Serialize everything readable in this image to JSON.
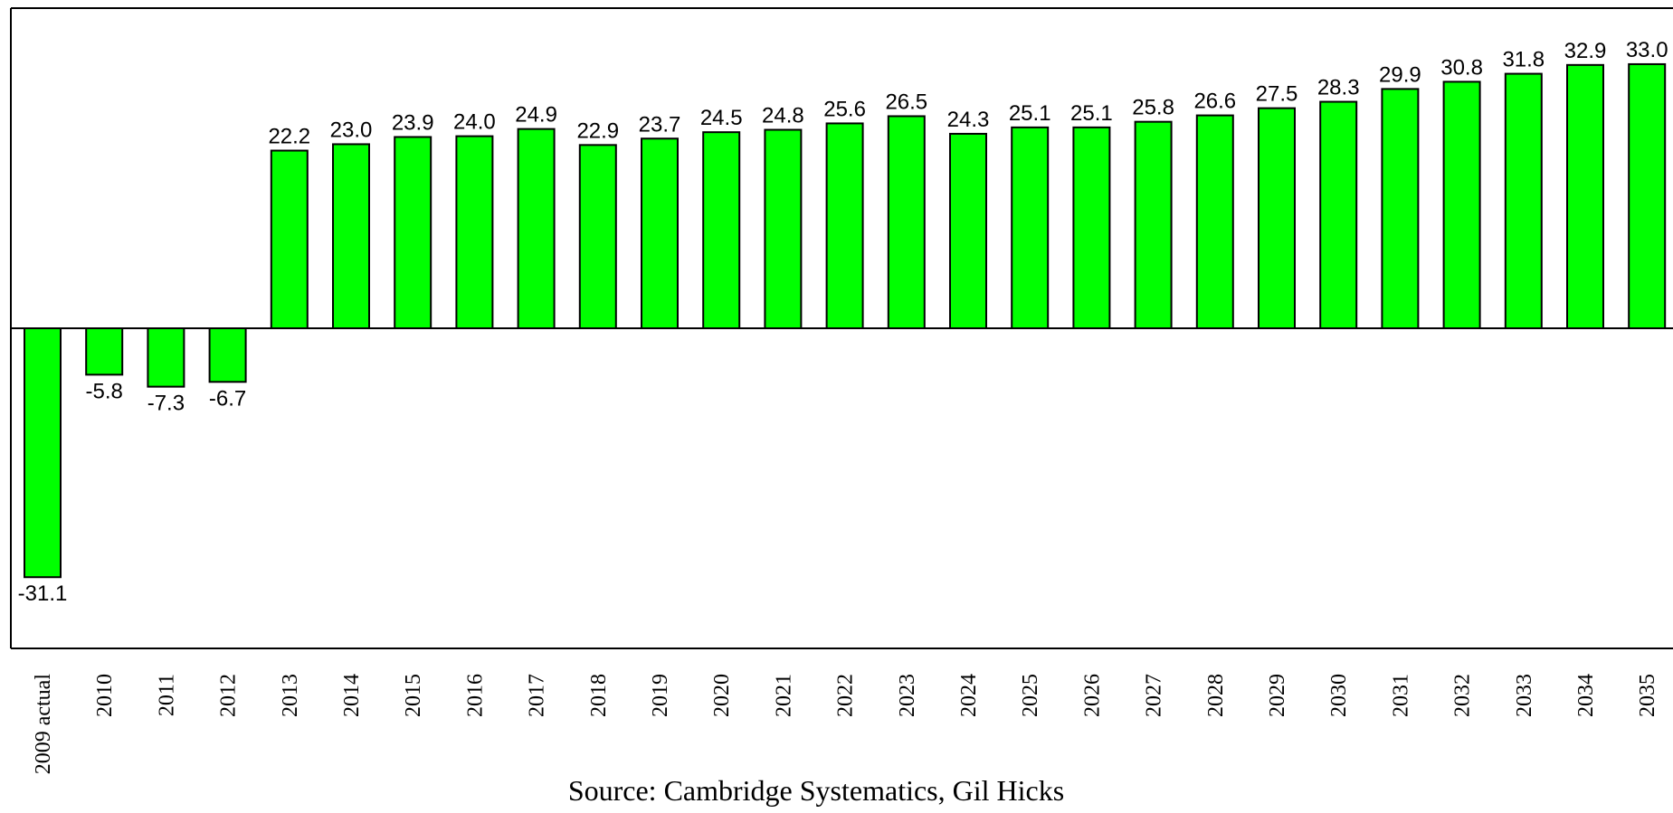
{
  "chart_data": {
    "type": "bar",
    "categories": [
      "2009 actual",
      "2010",
      "2011",
      "2012",
      "2013",
      "2014",
      "2015",
      "2016",
      "2017",
      "2018",
      "2019",
      "2020",
      "2021",
      "2022",
      "2023",
      "2024",
      "2025",
      "2026",
      "2027",
      "2028",
      "2029",
      "2030",
      "2031",
      "2032",
      "2033",
      "2034",
      "2035"
    ],
    "values": [
      -31.1,
      -5.8,
      -7.3,
      -6.7,
      22.2,
      23.0,
      23.9,
      24.0,
      24.9,
      22.9,
      23.7,
      24.5,
      24.8,
      25.6,
      26.5,
      24.3,
      25.1,
      25.1,
      25.8,
      26.6,
      27.5,
      28.3,
      29.9,
      30.8,
      31.8,
      32.9,
      33.0
    ],
    "value_labels": [
      "-31.1",
      "-5.8",
      "-7.3",
      "-6.7",
      "22.2",
      "23.0",
      "23.9",
      "24.0",
      "24.9",
      "22.9",
      "23.7",
      "24.5",
      "24.8",
      "25.6",
      "26.5",
      "24.3",
      "25.1",
      "25.1",
      "25.8",
      "26.6",
      "27.5",
      "28.3",
      "29.9",
      "30.8",
      "31.8",
      "32.9",
      "33.0"
    ],
    "color": "#00ff00",
    "ylim": [
      -40,
      40
    ],
    "source": "Source:  Cambridge Systematics, Gil Hicks"
  }
}
